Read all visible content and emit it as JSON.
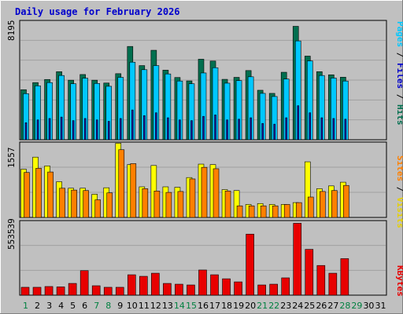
{
  "title": "Daily usage for February 2026",
  "colors": {
    "background": "#c0c0c0",
    "plot_bg": "#c0c0c0",
    "grid": "#a0a0a0",
    "hits": "#006f4f",
    "files": "#00c8ff",
    "pages": "#1a1aa8",
    "visits": "#ffff00",
    "sites": "#ff8000",
    "kbytes": "#e80000",
    "day_weekday": "#000000",
    "day_weekend": "#008040"
  },
  "right_labels": {
    "panel1": [
      {
        "text": "Pages",
        "color": "#00c8ff"
      },
      {
        "text": " / ",
        "color": "#000000"
      },
      {
        "text": "Files",
        "color": "#0000cc"
      },
      {
        "text": " / ",
        "color": "#000000"
      },
      {
        "text": "Hits",
        "color": "#006f4f"
      }
    ],
    "panel2": [
      {
        "text": "Sites",
        "color": "#ff8000"
      },
      {
        "text": " / ",
        "color": "#000000"
      },
      {
        "text": "Visits",
        "color": "#e6d000"
      }
    ],
    "panel3": [
      {
        "text": "KBytes",
        "color": "#e80000"
      }
    ]
  },
  "chart_data": [
    {
      "type": "bar",
      "panel": "hits-files-pages",
      "ymax_label": "8195",
      "ylim": [
        0,
        8195
      ],
      "categories": [
        "1",
        "2",
        "3",
        "4",
        "5",
        "6",
        "7",
        "8",
        "9",
        "10",
        "11",
        "12",
        "13",
        "14",
        "15",
        "16",
        "17",
        "18",
        "19",
        "20",
        "21",
        "22",
        "23",
        "24",
        "25",
        "26",
        "27",
        "28",
        "29",
        "30",
        "31"
      ],
      "weekend_days": [
        "1",
        "7",
        "8",
        "14",
        "15",
        "21",
        "22",
        "28",
        "29"
      ],
      "series": [
        {
          "name": "Hits",
          "values": [
            3530,
            4030,
            4250,
            4800,
            4200,
            4600,
            4200,
            4000,
            4660,
            6580,
            5230,
            6310,
            4910,
            4390,
            4150,
            5680,
            5550,
            4260,
            4400,
            4880,
            3490,
            3270,
            4760,
            8000,
            5900,
            4800,
            4580,
            4410,
            0,
            0,
            0
          ]
        },
        {
          "name": "Files",
          "values": [
            3250,
            3800,
            4030,
            4530,
            3950,
            4340,
            3970,
            3770,
            4400,
            5470,
            4940,
            5230,
            4640,
            4140,
            3950,
            4710,
            5080,
            3990,
            4170,
            4440,
            3270,
            3050,
            4280,
            6970,
            5560,
            4530,
            4350,
            4140,
            0,
            0,
            0
          ]
        },
        {
          "name": "Pages",
          "values": [
            1200,
            1400,
            1500,
            1600,
            1350,
            1500,
            1400,
            1300,
            1500,
            2100,
            1700,
            1900,
            1550,
            1400,
            1350,
            1650,
            1750,
            1400,
            1450,
            1550,
            1150,
            1100,
            1550,
            2400,
            1900,
            1550,
            1500,
            1450,
            0,
            0,
            0
          ]
        }
      ]
    },
    {
      "type": "bar",
      "panel": "visits-sites",
      "ymax_label": "1557",
      "ylim": [
        0,
        1557
      ],
      "categories": [
        "1",
        "2",
        "3",
        "4",
        "5",
        "6",
        "7",
        "8",
        "9",
        "10",
        "11",
        "12",
        "13",
        "14",
        "15",
        "16",
        "17",
        "18",
        "19",
        "20",
        "21",
        "22",
        "23",
        "24",
        "25",
        "26",
        "27",
        "28",
        "29",
        "30",
        "31"
      ],
      "series": [
        {
          "name": "Visits",
          "values": [
            1040,
            1300,
            1110,
            770,
            630,
            630,
            500,
            640,
            1600,
            1140,
            660,
            1120,
            660,
            650,
            860,
            1150,
            1140,
            600,
            580,
            280,
            300,
            280,
            280,
            320,
            1200,
            620,
            680,
            760,
            0,
            0,
            0
          ]
        },
        {
          "name": "Sites",
          "values": [
            970,
            1060,
            980,
            630,
            590,
            580,
            380,
            530,
            1460,
            1160,
            620,
            570,
            540,
            560,
            830,
            1080,
            1050,
            570,
            250,
            250,
            250,
            250,
            280,
            320,
            440,
            560,
            580,
            690,
            0,
            0,
            0
          ]
        }
      ]
    },
    {
      "type": "bar",
      "panel": "kbytes",
      "ymax_label": "553539",
      "ylim": [
        0,
        553539
      ],
      "categories": [
        "1",
        "2",
        "3",
        "4",
        "5",
        "6",
        "7",
        "8",
        "9",
        "10",
        "11",
        "12",
        "13",
        "14",
        "15",
        "16",
        "17",
        "18",
        "19",
        "20",
        "21",
        "22",
        "23",
        "24",
        "25",
        "26",
        "27",
        "28",
        "29",
        "30",
        "31"
      ],
      "series": [
        {
          "name": "KBytes",
          "values": [
            61000,
            61000,
            67000,
            64000,
            91000,
            190000,
            73000,
            61000,
            61000,
            158000,
            146000,
            170000,
            91000,
            85000,
            79000,
            195000,
            158000,
            127000,
            103000,
            473000,
            79000,
            85000,
            134000,
            557000,
            355000,
            230000,
            170000,
            283000,
            0,
            0,
            0
          ]
        }
      ]
    }
  ]
}
